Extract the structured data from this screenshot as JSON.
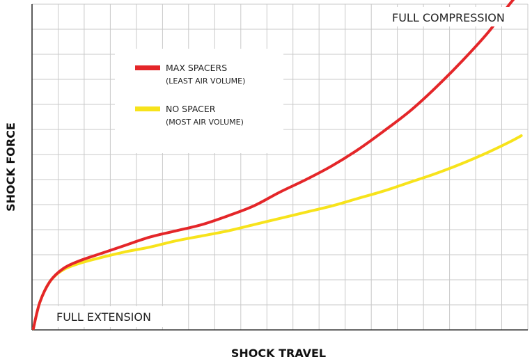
{
  "chart_data": {
    "type": "line",
    "title": "",
    "xlabel": "SHOCK TRAVEL",
    "ylabel": "SHOCK FORCE",
    "xlim": [
      0,
      19
    ],
    "ylim": [
      0,
      13
    ],
    "grid": true,
    "tick_labels": false,
    "legend_position": "top-left",
    "annotations": {
      "top": "FULL COMPRESSION",
      "bottom": "FULL EXTENSION"
    },
    "series": [
      {
        "name": "MAX SPACERS",
        "subtitle": "(LEAST AIR VOLUME)",
        "color": "#e42629",
        "x": [
          0.05,
          0.3,
          0.7,
          1.2,
          1.8,
          2.5,
          3.5,
          4.5,
          5.5,
          6.5,
          7.5,
          8.5,
          9.5,
          10.5,
          11.5,
          12.5,
          13.5,
          14.5,
          15.5,
          16.5,
          17.5,
          18.3,
          18.75
        ],
        "y": [
          0.05,
          1.1,
          1.95,
          2.45,
          2.75,
          3.0,
          3.35,
          3.7,
          3.95,
          4.2,
          4.55,
          4.95,
          5.5,
          6.0,
          6.55,
          7.2,
          7.95,
          8.75,
          9.7,
          10.75,
          11.9,
          13.0,
          13.55
        ]
      },
      {
        "name": "NO SPACER",
        "subtitle": "(MOST AIR VOLUME)",
        "color": "#f7e31b",
        "x": [
          0.05,
          0.3,
          0.7,
          1.2,
          1.8,
          2.5,
          3.5,
          4.5,
          5.5,
          6.5,
          7.5,
          8.5,
          9.5,
          10.5,
          11.5,
          12.5,
          13.5,
          14.5,
          15.5,
          16.5,
          17.5,
          18.3,
          18.75
        ],
        "y": [
          0.05,
          1.1,
          1.95,
          2.4,
          2.65,
          2.85,
          3.1,
          3.3,
          3.55,
          3.75,
          3.95,
          4.2,
          4.45,
          4.7,
          4.95,
          5.25,
          5.55,
          5.9,
          6.25,
          6.65,
          7.1,
          7.5,
          7.75
        ]
      }
    ]
  }
}
